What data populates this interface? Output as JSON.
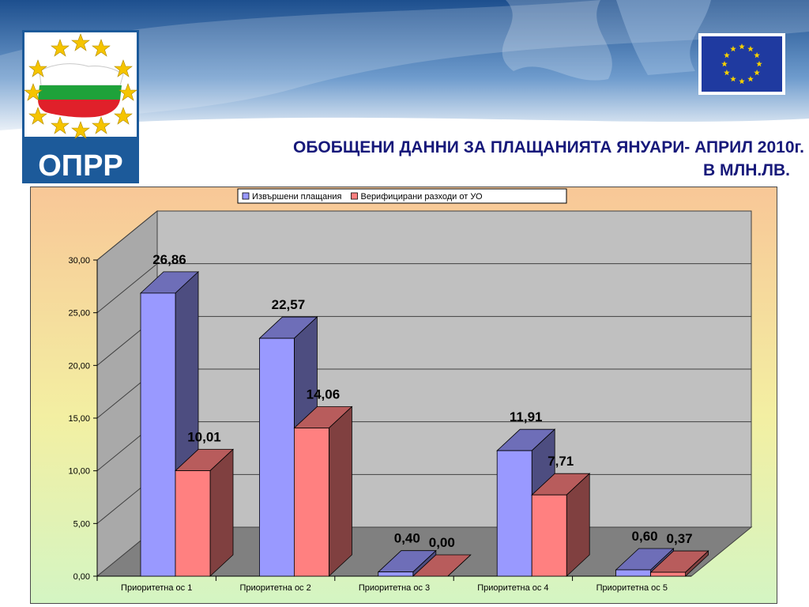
{
  "slide": {
    "logo_text": "ОПРР",
    "title_line1": "ОБОБЩЕНИ ДАННИ ЗА ПЛАЩАНИЯТА ЯНУАРИ- АПРИЛ 2010г.",
    "title_line2": "В МЛН.ЛВ.",
    "colors": {
      "title": "#17197a",
      "banner_dark": "#1f4e8f",
      "banner_light": "#cfe0f2",
      "logo_bg": "#1c5a9a",
      "eu_blue": "#1f3aa0",
      "eu_star": "#f5d000"
    }
  },
  "chart_data": {
    "type": "bar",
    "categories": [
      "Приоритетна ос 1",
      "Приоритетна ос 2",
      "Приоритетна ос 3",
      "Приоритетна ос 4",
      "Приоритетна ос 5"
    ],
    "series": [
      {
        "name": "Извършени плащания",
        "values": [
          26.86,
          22.57,
          0.4,
          11.91,
          0.6
        ],
        "labels": [
          "26,86",
          "22,57",
          "0,40",
          "11,91",
          "0,60"
        ],
        "color": "#9999ff"
      },
      {
        "name": "Верифицирани разходи от УО",
        "values": [
          10.01,
          14.06,
          0.0,
          7.71,
          0.37
        ],
        "labels": [
          "10,01",
          "14,06",
          "0,00",
          "7,71",
          "0,37"
        ],
        "color": "#ff8080"
      }
    ],
    "ylim": [
      0,
      30
    ],
    "yticks": [
      0,
      5,
      10,
      15,
      20,
      25,
      30
    ],
    "ytick_labels": [
      "0,00",
      "5,00",
      "10,00",
      "15,00",
      "20,00",
      "25,00",
      "30,00"
    ],
    "grid": true,
    "legend": "top",
    "style": "3d-clustered-column"
  }
}
